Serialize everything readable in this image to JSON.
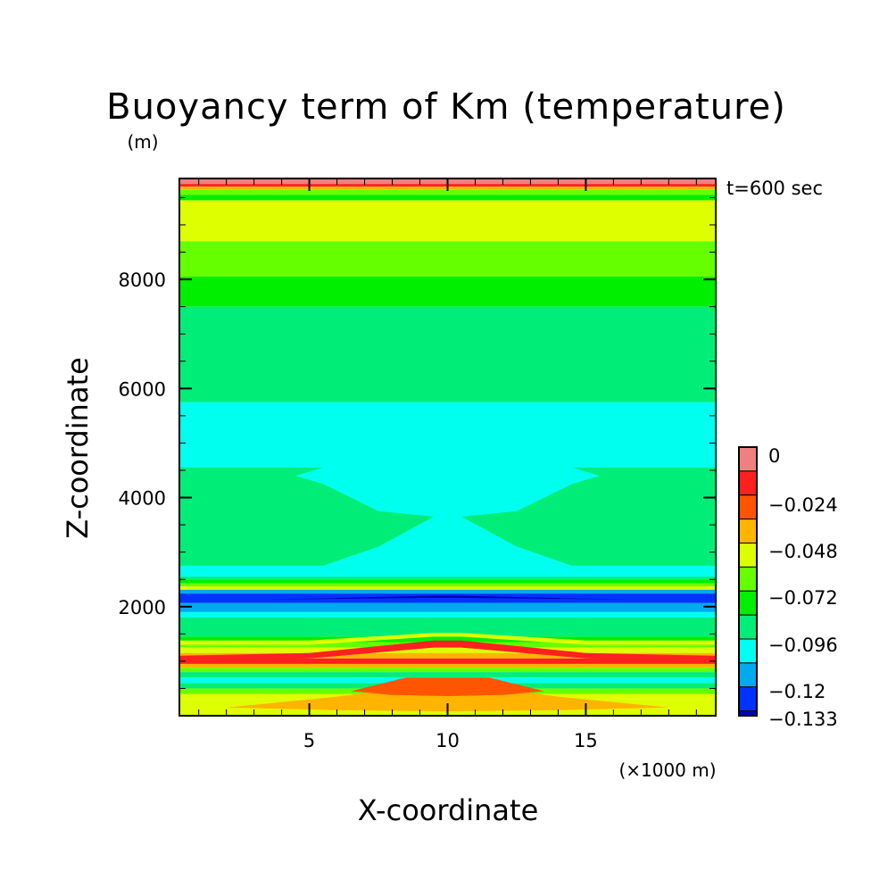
{
  "chart_data": {
    "type": "heatmap",
    "title": "Buoyancy term of Km (temperature)",
    "ylabel": "Z-coordinate",
    "yunit": "(m)",
    "xlabel": "X-coordinate",
    "xunit": "(×1000 m)",
    "time_label": "t=600 sec",
    "xlim": [
      0.3,
      19.7
    ],
    "ylim": [
      0,
      9850
    ],
    "xticks": [
      5,
      10,
      15
    ],
    "yticks": [
      2000,
      4000,
      6000,
      8000
    ],
    "colorbar": {
      "ticks": [
        "0",
        "−0.024",
        "−0.048",
        "−0.072",
        "−0.096",
        "−0.12",
        "−0.133"
      ],
      "levels": [
        {
          "value": 0,
          "color": "#f08080"
        },
        {
          "value": -0.012,
          "color": "#ff2020"
        },
        {
          "value": -0.024,
          "color": "#ff5500"
        },
        {
          "value": -0.036,
          "color": "#ffb400"
        },
        {
          "value": -0.048,
          "color": "#ddff00"
        },
        {
          "value": -0.06,
          "color": "#66ff00"
        },
        {
          "value": -0.072,
          "color": "#00ee00"
        },
        {
          "value": -0.084,
          "color": "#00ee77"
        },
        {
          "value": -0.096,
          "color": "#00ffee"
        },
        {
          "value": -0.108,
          "color": "#00aaee"
        },
        {
          "value": -0.12,
          "color": "#0033ff"
        },
        {
          "value": -0.133,
          "color": "#0000bb"
        }
      ]
    },
    "bands": [
      {
        "z": [
          9750,
          9850
        ],
        "color": "#f08080"
      },
      {
        "z": [
          9700,
          9750
        ],
        "color": "#ff2020"
      },
      {
        "z": [
          9650,
          9700
        ],
        "color": "#ffb400"
      },
      {
        "z": [
          9550,
          9650
        ],
        "color": "#66ff00"
      },
      {
        "z": [
          9450,
          9550
        ],
        "color": "#00ee00"
      },
      {
        "z": [
          8700,
          9450
        ],
        "color": "#ddff00"
      },
      {
        "z": [
          8050,
          8700
        ],
        "color": "#66ff00"
      },
      {
        "z": [
          7500,
          8050
        ],
        "color": "#00ee00"
      },
      {
        "z": [
          5750,
          7500
        ],
        "color": "#00ee77"
      },
      {
        "z": [
          2600,
          5750
        ],
        "color": "#00ffee"
      },
      {
        "z": [
          2500,
          2600
        ],
        "color": "#00ee77"
      },
      {
        "z": [
          2430,
          2500
        ],
        "color": "#00ee00"
      },
      {
        "z": [
          2370,
          2430
        ],
        "color": "#66ff00"
      },
      {
        "z": [
          2310,
          2370
        ],
        "color": "#ddff00"
      },
      {
        "z": [
          2240,
          2310
        ],
        "color": "#00aaee"
      },
      {
        "z": [
          2070,
          2240
        ],
        "color": "#0033ff"
      },
      {
        "z": [
          1900,
          2070
        ],
        "color": "#00aaee"
      },
      {
        "z": [
          1800,
          1900
        ],
        "color": "#00ffee"
      },
      {
        "z": [
          1450,
          1800
        ],
        "color": "#00ee77"
      },
      {
        "z": [
          1350,
          1450
        ],
        "color": "#00ee00"
      },
      {
        "z": [
          1250,
          1350
        ],
        "color": "#66ff00"
      },
      {
        "z": [
          1150,
          1250
        ],
        "color": "#ddff00"
      },
      {
        "z": [
          1050,
          1150
        ],
        "color": "#ffb400"
      },
      {
        "z": [
          950,
          1050
        ],
        "color": "#ff2020"
      },
      {
        "z": [
          880,
          950
        ],
        "color": "#ffb400"
      },
      {
        "z": [
          800,
          880
        ],
        "color": "#66ff00"
      },
      {
        "z": [
          700,
          800
        ],
        "color": "#00ee77"
      },
      {
        "z": [
          600,
          700
        ],
        "color": "#00ffee"
      },
      {
        "z": [
          500,
          600
        ],
        "color": "#00ee77"
      },
      {
        "z": [
          400,
          500
        ],
        "color": "#66ff00"
      },
      {
        "z": [
          300,
          400
        ],
        "color": "#ddff00"
      },
      {
        "z": [
          0,
          300
        ],
        "color": "#ddff00"
      }
    ],
    "features": [
      {
        "color": "#00ee77",
        "points": [
          [
            0.3,
            2750
          ],
          [
            5.5,
            2750
          ],
          [
            7.5,
            3100
          ],
          [
            9.5,
            3650
          ],
          [
            10.5,
            3650
          ],
          [
            12.5,
            3100
          ],
          [
            14.5,
            2750
          ],
          [
            19.7,
            2750
          ],
          [
            19.7,
            4550
          ],
          [
            14.5,
            4550
          ],
          [
            15.5,
            4400
          ],
          [
            14.5,
            4250
          ],
          [
            12.5,
            3750
          ],
          [
            10.5,
            3650
          ],
          [
            9.5,
            3650
          ],
          [
            7.5,
            3750
          ],
          [
            5.5,
            4250
          ],
          [
            4.5,
            4400
          ],
          [
            5.5,
            4550
          ],
          [
            0.3,
            4550
          ]
        ]
      },
      {
        "color": "#00ffee",
        "points": [
          [
            0.3,
            2550
          ],
          [
            19.7,
            2550
          ],
          [
            19.7,
            2720
          ],
          [
            0.3,
            2720
          ]
        ]
      },
      {
        "color": "#0000bb",
        "points": [
          [
            3.5,
            2130
          ],
          [
            9.5,
            2160
          ],
          [
            10.5,
            2160
          ],
          [
            16.5,
            2130
          ],
          [
            10.5,
            2200
          ],
          [
            9.5,
            2200
          ]
        ]
      },
      {
        "color": "#ddff00",
        "points": [
          [
            0.3,
            1300
          ],
          [
            5,
            1300
          ],
          [
            9.5,
            1450
          ],
          [
            10.5,
            1450
          ],
          [
            15,
            1300
          ],
          [
            19.7,
            1300
          ],
          [
            19.7,
            1380
          ],
          [
            15,
            1380
          ],
          [
            10.5,
            1520
          ],
          [
            9.5,
            1520
          ],
          [
            5,
            1380
          ],
          [
            0.3,
            1380
          ]
        ]
      },
      {
        "color": "#ff2020",
        "points": [
          [
            0.3,
            1000
          ],
          [
            5,
            1050
          ],
          [
            9.5,
            1250
          ],
          [
            10.5,
            1250
          ],
          [
            15,
            1050
          ],
          [
            19.7,
            1000
          ],
          [
            19.7,
            1100
          ],
          [
            15,
            1150
          ],
          [
            10.5,
            1380
          ],
          [
            9.5,
            1380
          ],
          [
            5,
            1150
          ],
          [
            0.3,
            1100
          ]
        ]
      },
      {
        "color": "#ffb400",
        "points": [
          [
            2,
            150
          ],
          [
            6,
            350
          ],
          [
            9,
            550
          ],
          [
            11,
            550
          ],
          [
            14,
            350
          ],
          [
            18,
            150
          ],
          [
            14,
            100
          ],
          [
            10,
            80
          ],
          [
            6,
            100
          ]
        ]
      },
      {
        "color": "#ff5500",
        "points": [
          [
            6.5,
            450
          ],
          [
            8.5,
            700
          ],
          [
            11.5,
            700
          ],
          [
            13.5,
            450
          ],
          [
            12,
            380
          ],
          [
            10,
            360
          ],
          [
            8,
            380
          ]
        ]
      }
    ]
  }
}
